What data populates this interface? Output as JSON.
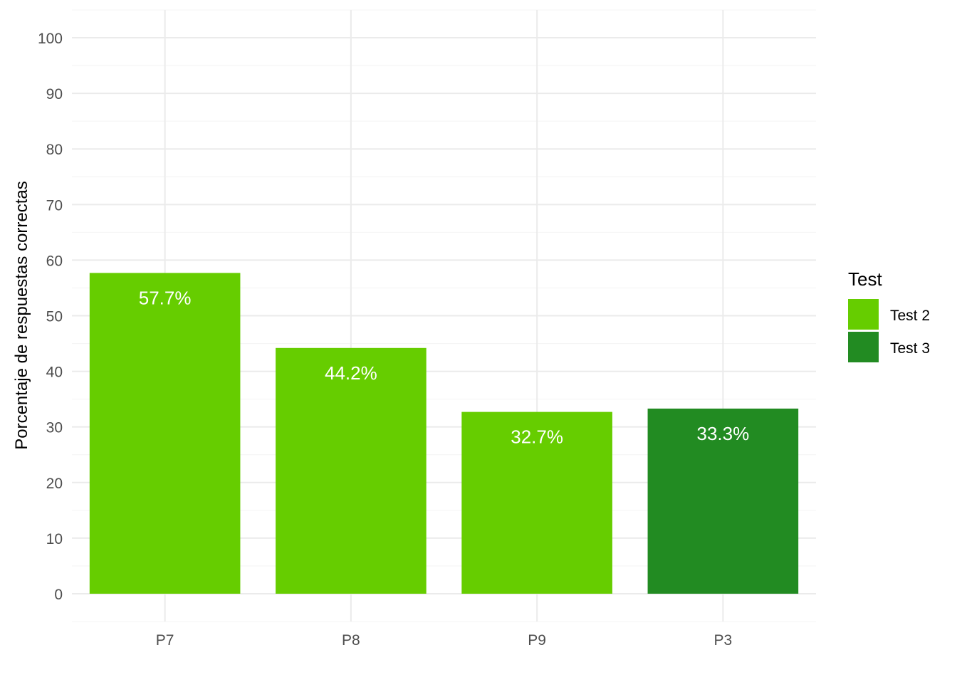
{
  "chart_data": {
    "type": "bar",
    "ylabel": "Porcentaje de respuestas correctas",
    "xlabel": "",
    "categories": [
      "P7",
      "P8",
      "P9",
      "P3"
    ],
    "values": [
      57.7,
      44.2,
      32.7,
      33.3
    ],
    "value_labels": [
      "57.7%",
      "44.2%",
      "32.7%",
      "33.3%"
    ],
    "groups": [
      "Test 2",
      "Test 2",
      "Test 2",
      "Test 3"
    ],
    "ylim": [
      -5,
      105
    ],
    "yticks": [
      0,
      10,
      20,
      30,
      40,
      50,
      60,
      70,
      80,
      90,
      100
    ],
    "grid": true,
    "legend": {
      "title": "Test",
      "placement": "right",
      "items": [
        {
          "label": "Test 2",
          "color": "#66CD00"
        },
        {
          "label": "Test 3",
          "color": "#228B22"
        }
      ]
    },
    "colors": {
      "Test 2": "#66CD00",
      "Test 3": "#228B22",
      "grid_major": "#EBEBEB",
      "grid_minor": "#F5F5F5",
      "axis_text": "#4D4D4D",
      "value_text": "#FFFFFF"
    }
  }
}
